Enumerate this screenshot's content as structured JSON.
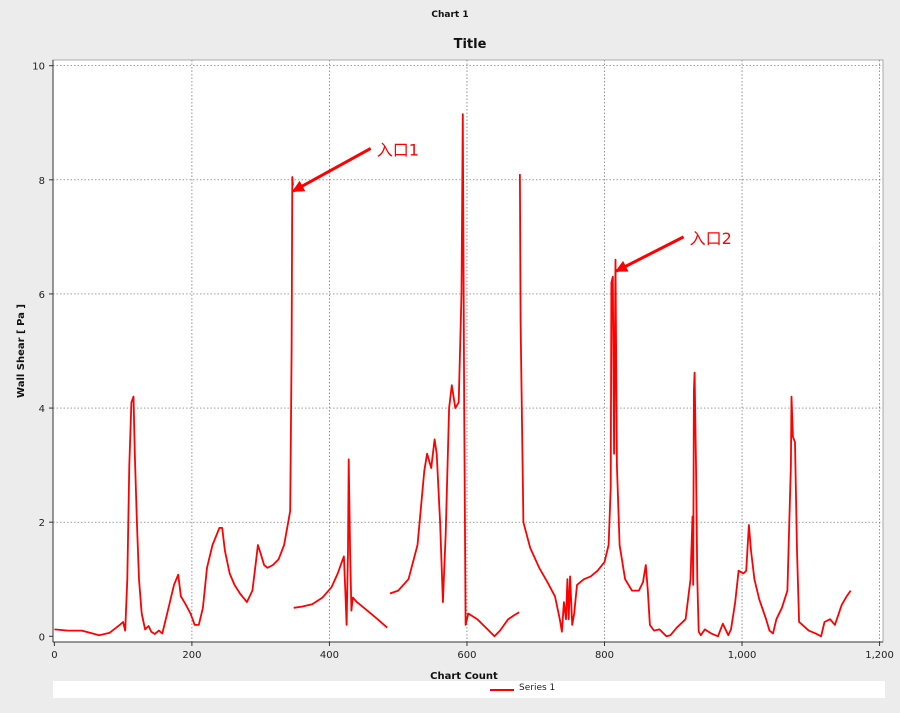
{
  "window": {
    "title": "Chart 1"
  },
  "colors": {
    "background": "#ececec",
    "plot_background": "#ffffff",
    "series": "#ff0000",
    "grid": "#666666"
  },
  "chart_data": {
    "type": "line",
    "title": "Title",
    "xlabel": "Chart Count",
    "ylabel": "Wall Shear [ Pa ]",
    "xlim": [
      -2,
      1205
    ],
    "ylim": [
      -0.1,
      10.1
    ],
    "xticks": [
      0,
      200,
      400,
      600,
      800,
      1000,
      1200
    ],
    "xtick_labels": [
      "0",
      "200",
      "400",
      "600",
      "800",
      "1,000",
      "1,200"
    ],
    "yticks": [
      0,
      2,
      4,
      6,
      8,
      10
    ],
    "ytick_labels": [
      "0",
      "2",
      "4",
      "6",
      "8",
      "10"
    ],
    "grid": true,
    "legend_position": "bottom",
    "series": [
      {
        "name": "Series 1",
        "segments": [
          [
            [
              0,
              0.12
            ],
            [
              20,
              0.1
            ],
            [
              40,
              0.1
            ],
            [
              55,
              0.05
            ],
            [
              65,
              0.02
            ],
            [
              80,
              0.06
            ],
            [
              95,
              0.2
            ],
            [
              100,
              0.25
            ],
            [
              103,
              0.1
            ],
            [
              106,
              1.0
            ],
            [
              109,
              3.0
            ],
            [
              112,
              4.1
            ],
            [
              115,
              4.2
            ],
            [
              117,
              3.2
            ],
            [
              120,
              2.0
            ],
            [
              123,
              1.0
            ],
            [
              127,
              0.4
            ],
            [
              132,
              0.12
            ],
            [
              137,
              0.18
            ],
            [
              141,
              0.08
            ],
            [
              146,
              0.04
            ],
            [
              152,
              0.1
            ],
            [
              157,
              0.05
            ],
            [
              162,
              0.3
            ],
            [
              168,
              0.6
            ],
            [
              174,
              0.9
            ],
            [
              180,
              1.08
            ],
            [
              184,
              0.7
            ],
            [
              190,
              0.58
            ],
            [
              198,
              0.4
            ],
            [
              204,
              0.2
            ],
            [
              210,
              0.2
            ],
            [
              216,
              0.5
            ],
            [
              222,
              1.2
            ],
            [
              230,
              1.6
            ],
            [
              240,
              1.9
            ],
            [
              244,
              1.9
            ],
            [
              248,
              1.5
            ],
            [
              255,
              1.1
            ],
            [
              262,
              0.9
            ],
            [
              270,
              0.75
            ],
            [
              280,
              0.6
            ],
            [
              288,
              0.8
            ],
            [
              293,
              1.3
            ],
            [
              296,
              1.6
            ],
            [
              300,
              1.45
            ],
            [
              305,
              1.25
            ],
            [
              310,
              1.2
            ],
            [
              318,
              1.25
            ],
            [
              326,
              1.35
            ],
            [
              334,
              1.6
            ],
            [
              340,
              2.0
            ],
            [
              343,
              2.2
            ],
            [
              345,
              5.0
            ],
            [
              346,
              8.05
            ],
            [
              347,
              7.9
            ]
          ],
          [
            [
              348,
              0.5
            ],
            [
              360,
              0.52
            ],
            [
              375,
              0.56
            ],
            [
              390,
              0.68
            ],
            [
              403,
              0.86
            ],
            [
              412,
              1.1
            ],
            [
              418,
              1.3
            ],
            [
              421,
              1.4
            ],
            [
              423,
              0.8
            ],
            [
              425,
              0.2
            ],
            [
              427,
              1.5
            ],
            [
              428,
              3.1
            ],
            [
              430,
              1.5
            ],
            [
              432,
              0.45
            ],
            [
              434,
              0.68
            ],
            [
              440,
              0.6
            ],
            [
              455,
              0.45
            ],
            [
              470,
              0.3
            ],
            [
              484,
              0.15
            ]
          ],
          [
            [
              488,
              0.75
            ],
            [
              500,
              0.8
            ],
            [
              515,
              1.0
            ],
            [
              528,
              1.6
            ],
            [
              538,
              2.9
            ],
            [
              542,
              3.2
            ],
            [
              548,
              2.95
            ],
            [
              553,
              3.45
            ],
            [
              556,
              3.2
            ],
            [
              561,
              2.0
            ],
            [
              565,
              0.6
            ],
            [
              569,
              1.8
            ],
            [
              574,
              4.0
            ],
            [
              578,
              4.4
            ],
            [
              583,
              4.0
            ],
            [
              588,
              4.1
            ],
            [
              592,
              6.0
            ],
            [
              594,
              9.15
            ],
            [
              596,
              4.0
            ],
            [
              598,
              0.2
            ],
            [
              602,
              0.4
            ],
            [
              615,
              0.3
            ],
            [
              630,
              0.12
            ],
            [
              640,
              0.0
            ],
            [
              648,
              0.1
            ],
            [
              660,
              0.3
            ],
            [
              670,
              0.38
            ],
            [
              676,
              0.42
            ]
          ],
          [
            [
              677,
              8.1
            ],
            [
              678,
              5.5
            ],
            [
              682,
              2.0
            ],
            [
              692,
              1.55
            ],
            [
              705,
              1.2
            ],
            [
              717,
              0.95
            ],
            [
              728,
              0.7
            ],
            [
              735,
              0.3
            ],
            [
              738,
              0.08
            ],
            [
              741,
              0.6
            ],
            [
              744,
              0.3
            ],
            [
              746,
              1.0
            ],
            [
              748,
              0.3
            ],
            [
              750,
              1.05
            ],
            [
              753,
              0.2
            ],
            [
              756,
              0.4
            ],
            [
              760,
              0.9
            ],
            [
              770,
              1.0
            ],
            [
              780,
              1.05
            ],
            [
              790,
              1.15
            ],
            [
              800,
              1.3
            ],
            [
              806,
              1.6
            ],
            [
              809,
              2.6
            ],
            [
              810,
              6.2
            ],
            [
              812,
              6.3
            ],
            [
              814,
              3.2
            ],
            [
              816,
              6.6
            ],
            [
              818,
              3.0
            ],
            [
              822,
              1.6
            ],
            [
              830,
              1.0
            ],
            [
              840,
              0.8
            ],
            [
              850,
              0.8
            ],
            [
              856,
              0.95
            ],
            [
              860,
              1.25
            ],
            [
              863,
              0.8
            ],
            [
              866,
              0.2
            ],
            [
              872,
              0.1
            ],
            [
              880,
              0.12
            ],
            [
              890,
              0.0
            ],
            [
              896,
              0.02
            ],
            [
              905,
              0.15
            ],
            [
              918,
              0.3
            ],
            [
              925,
              1.0
            ],
            [
              928,
              2.1
            ],
            [
              929,
              0.9
            ],
            [
              930,
              4.3
            ],
            [
              931,
              4.62
            ],
            [
              933,
              3.0
            ],
            [
              935,
              1.0
            ],
            [
              937,
              0.08
            ],
            [
              940,
              0.02
            ],
            [
              946,
              0.12
            ],
            [
              955,
              0.05
            ],
            [
              965,
              0.0
            ],
            [
              972,
              0.22
            ],
            [
              980,
              0.02
            ],
            [
              984,
              0.12
            ],
            [
              990,
              0.6
            ],
            [
              995,
              1.15
            ],
            [
              1002,
              1.1
            ],
            [
              1006,
              1.15
            ],
            [
              1010,
              1.95
            ],
            [
              1013,
              1.5
            ],
            [
              1018,
              1.0
            ],
            [
              1025,
              0.65
            ],
            [
              1035,
              0.3
            ],
            [
              1040,
              0.1
            ],
            [
              1045,
              0.05
            ],
            [
              1050,
              0.3
            ],
            [
              1058,
              0.5
            ],
            [
              1066,
              0.8
            ],
            [
              1071,
              3.0
            ],
            [
              1072,
              4.2
            ],
            [
              1074,
              3.5
            ],
            [
              1077,
              3.4
            ],
            [
              1080,
              1.5
            ],
            [
              1083,
              0.25
            ],
            [
              1088,
              0.2
            ],
            [
              1097,
              0.1
            ],
            [
              1107,
              0.05
            ],
            [
              1115,
              0.0
            ],
            [
              1120,
              0.25
            ],
            [
              1128,
              0.3
            ],
            [
              1135,
              0.2
            ],
            [
              1145,
              0.55
            ],
            [
              1152,
              0.7
            ],
            [
              1158,
              0.8
            ]
          ]
        ]
      }
    ],
    "annotations": [
      {
        "text": "入口1",
        "arrow_tip": [
          347,
          7.8
        ],
        "arrow_tail": [
          460,
          8.55
        ]
      },
      {
        "text": "入口2",
        "arrow_tip": [
          817,
          6.4
        ],
        "arrow_tail": [
          915,
          7.0
        ]
      }
    ]
  },
  "legend": {
    "entries": [
      "Series 1"
    ]
  }
}
